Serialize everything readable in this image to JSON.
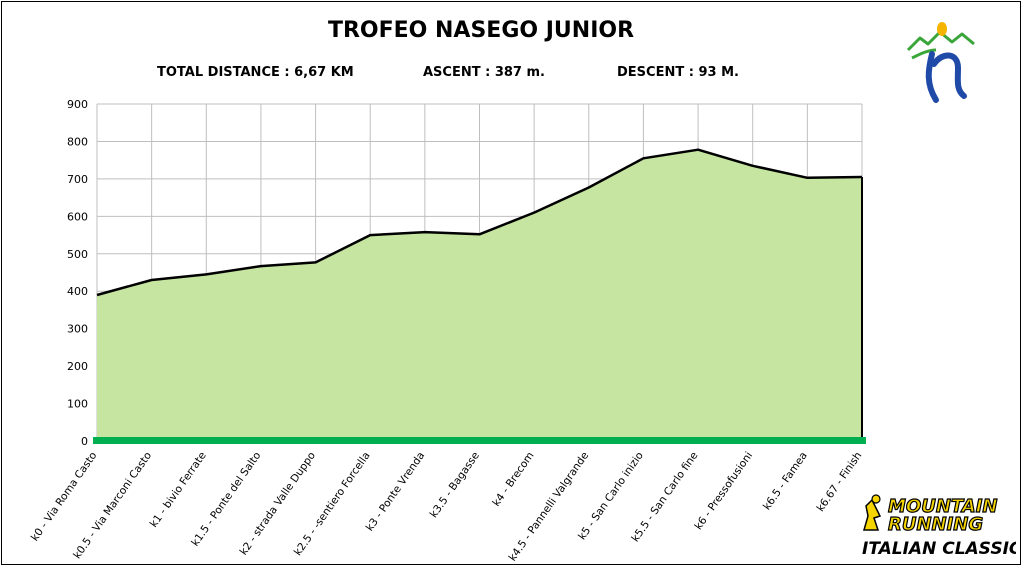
{
  "header": {
    "title": "TROFEO NASEGO JUNIOR",
    "total_distance": "TOTAL DISTANCE : 6,67 KM",
    "ascent": "ASCENT : 387 m.",
    "descent": "DESCENT : 93 M."
  },
  "logo_bottom": {
    "line1": "MOUNTAIN",
    "line2": "RUNNING",
    "line3": "ITALIAN CLASSIC"
  },
  "colors": {
    "fill": "#c6e5a0",
    "line": "#000000",
    "baseline": "#00b050",
    "grid": "#bfbfbf"
  },
  "chart_data": {
    "type": "area",
    "title": "TROFEO NASEGO JUNIOR",
    "categories": [
      "k0 - Via Roma Casto",
      "k0.5 - Via Marconi Casto",
      "k1 - bivio Ferrate",
      "k1.5 - Ponte del Salto",
      "k2 - strada Valle Duppo",
      "k2.5 - -sentiero Forcella",
      "k3 - Ponte Vrenda",
      "k3.5 - Bagasse",
      "k4 - Brecom",
      "k4.5 - Pannelli Valgrande",
      "k5 - San Carlo inizio",
      "k5.5 - San Carlo fine",
      "k6 - Pressofusioni",
      "k6.5 - Famea",
      "k6.67 - Finish"
    ],
    "values": [
      390,
      430,
      445,
      467,
      477,
      550,
      558,
      552,
      610,
      677,
      755,
      778,
      735,
      703,
      705
    ],
    "ylim": [
      0,
      900
    ],
    "yticks": [
      "0",
      "100",
      "200",
      "300",
      "400",
      "500",
      "600",
      "700",
      "800",
      "900"
    ],
    "grid": true,
    "legend": "none"
  }
}
